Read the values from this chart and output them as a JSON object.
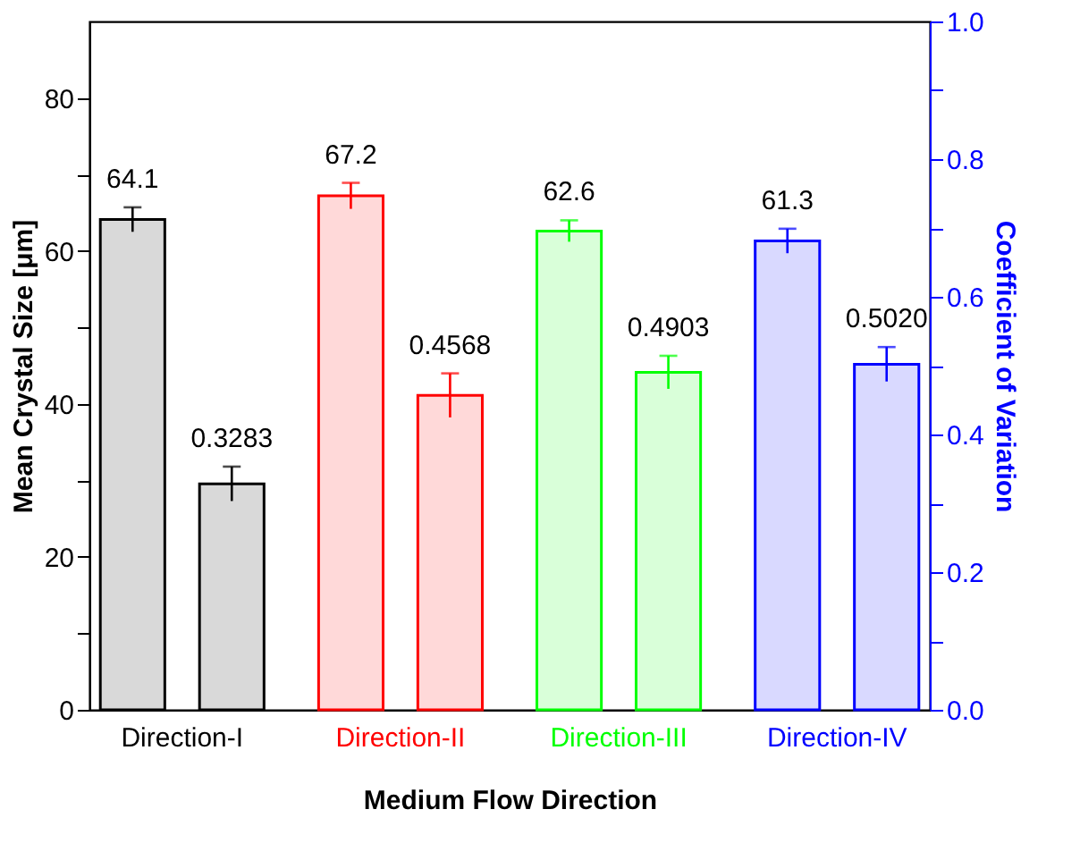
{
  "chart_data": {
    "type": "bar",
    "xlabel": "Medium Flow Direction",
    "ylabel": "Mean Crystal Size [μm]",
    "y2label": "Coefficient of Variation",
    "categories": [
      "Direction-I",
      "Direction-II",
      "Direction-III",
      "Direction-IV"
    ],
    "series": [
      {
        "colors": [
          "#000000",
          "#ff0000",
          "#00ff00",
          "#0000ff"
        ],
        "values": [
          64.1,
          67.2,
          62.6,
          61.3
        ],
        "value_labels": [
          "64.1",
          "67.2",
          "62.6",
          "61.3"
        ],
        "errors": [
          1.6,
          1.7,
          1.4,
          1.6
        ]
      },
      {
        "axis": "y2",
        "colors": [
          "#000000",
          "#ff0000",
          "#00ff00",
          "#0000ff"
        ],
        "values": [
          0.3283,
          0.4568,
          0.4903,
          0.502
        ],
        "value_labels": [
          "0.3283",
          "0.4568",
          "0.4903",
          "0.5020"
        ],
        "errors": [
          0.025,
          0.032,
          0.024,
          0.025
        ]
      }
    ],
    "ylim": [
      0,
      90
    ],
    "yticks": [
      0,
      {
        "value": 10,
        "label": null
      },
      20,
      {
        "value": 30,
        "label": null
      },
      40,
      {
        "value": 50,
        "label": null
      },
      60,
      {
        "value": 70,
        "label": null
      },
      80
    ],
    "y2lim": [
      0,
      1
    ],
    "y2ticks": [
      {
        "value": 0,
        "label": "0.0"
      },
      {
        "value": 0.1,
        "label": null
      },
      0.2,
      {
        "value": 0.3,
        "label": null
      },
      0.4,
      {
        "value": 0.5,
        "label": null
      },
      0.6,
      {
        "value": 0.7,
        "label": null
      },
      0.8,
      {
        "value": 0.9,
        "label": null
      },
      {
        "value": 1,
        "label": "1.0"
      }
    ],
    "grid": false
  }
}
